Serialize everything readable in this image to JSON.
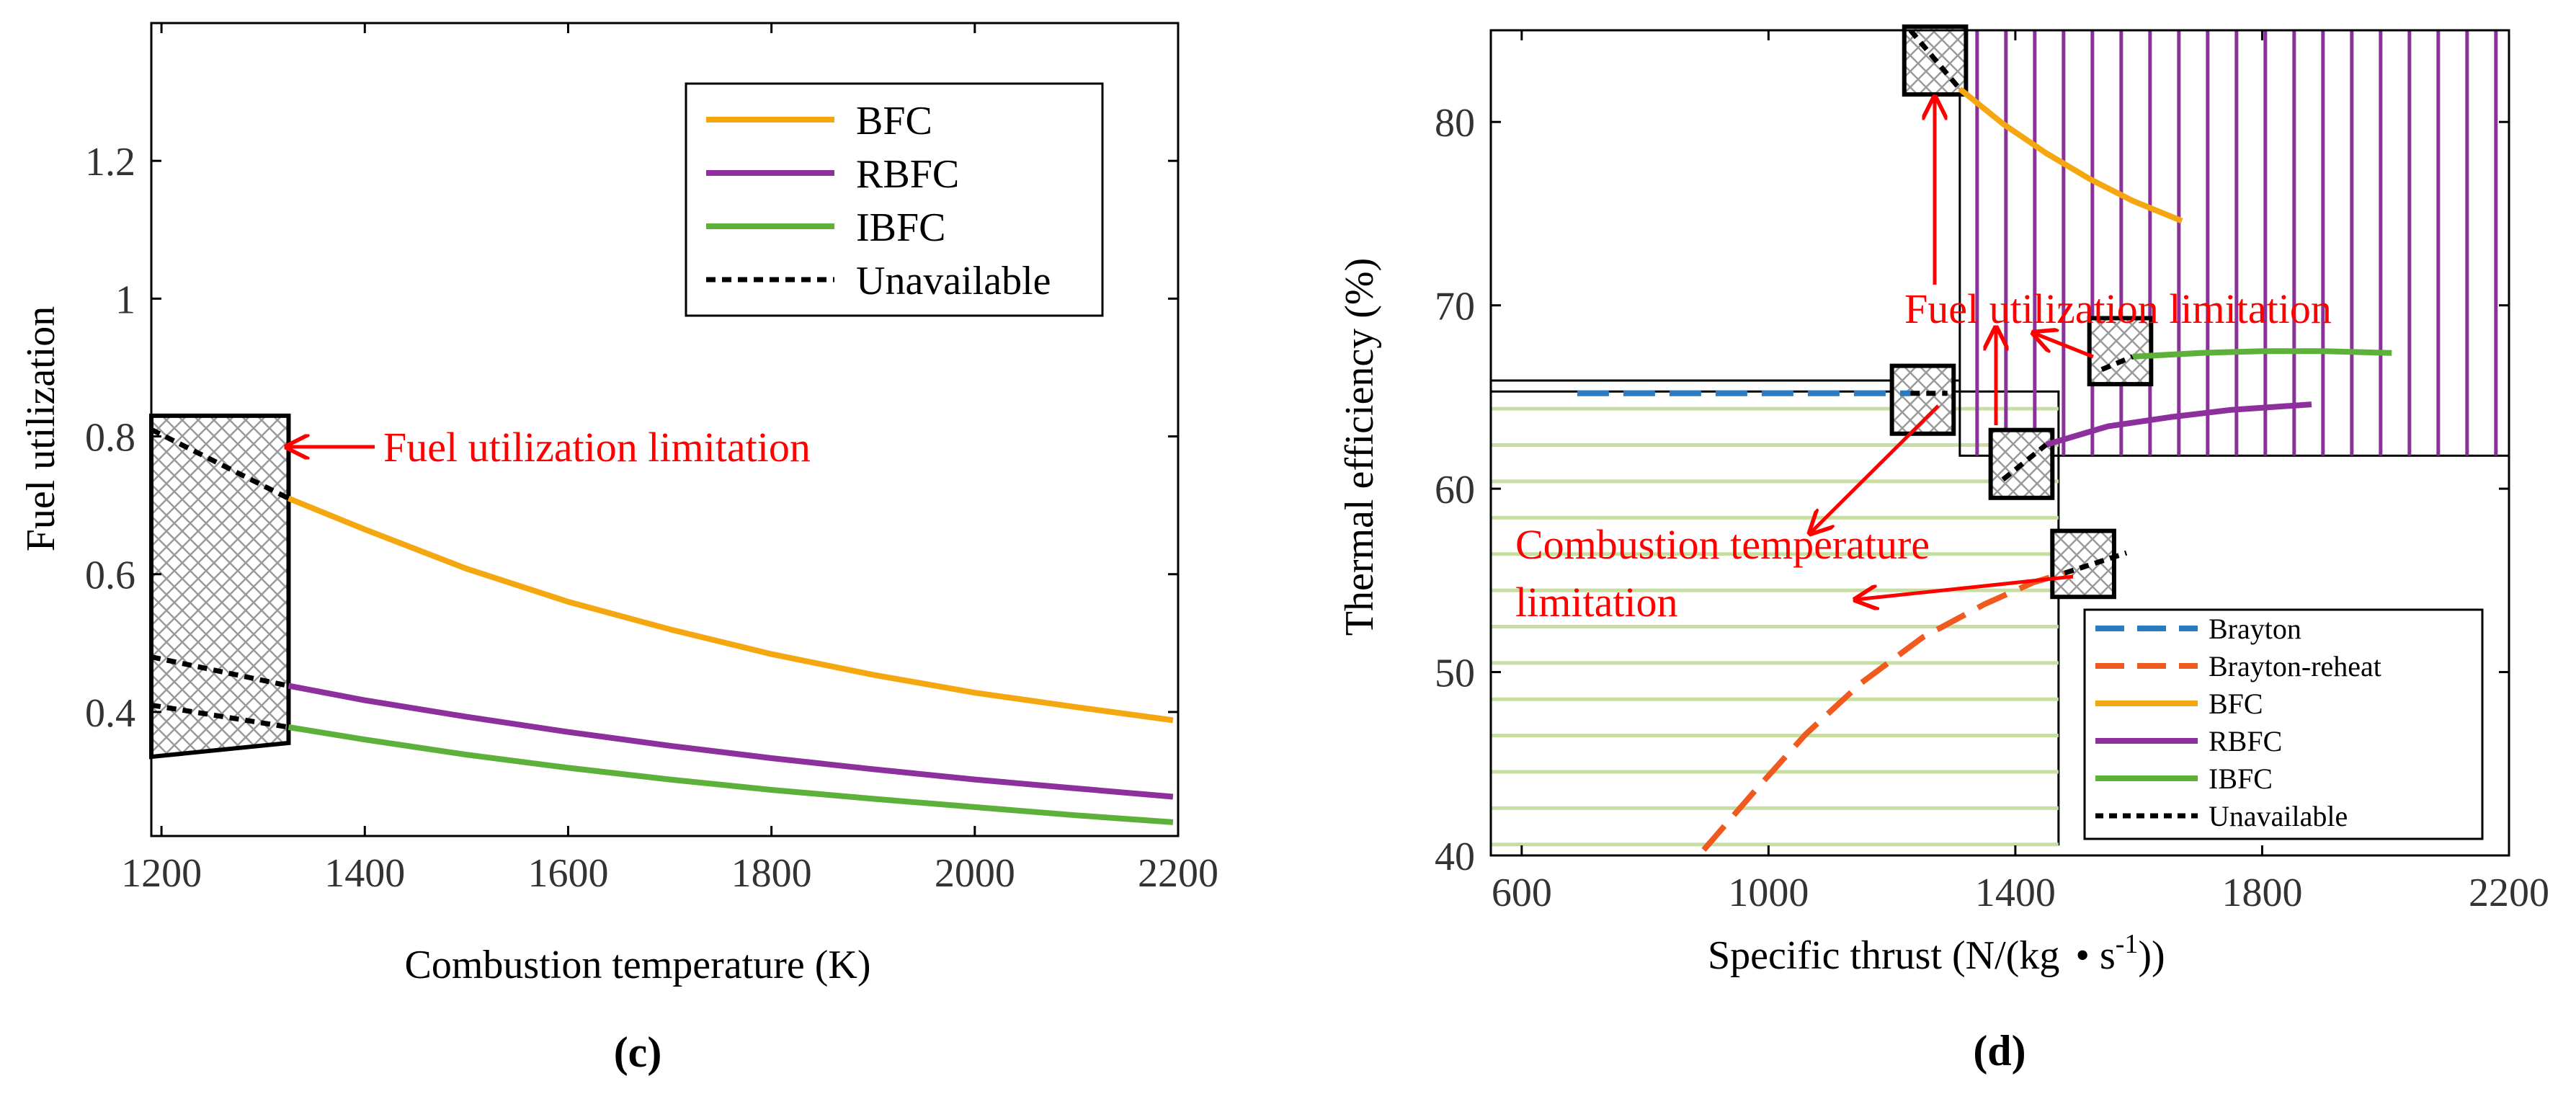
{
  "colors": {
    "bfc": "#f5a70f",
    "rbfc": "#8e2f9e",
    "ibfc": "#5db13a",
    "brayton": "#2c7bc0",
    "brayton_reheat": "#f05a1f",
    "unavailable": "#000000",
    "annotation": "#ff0000",
    "hatch_green": "#c6dfa0",
    "hatch_purple": "#8e2f9e"
  },
  "chart_data": [
    {
      "id": "c",
      "type": "line",
      "panel_label": "(c)",
      "title": "",
      "xlabel": "Combustion temperature (K)",
      "ylabel": "Fuel utilization",
      "xlim": [
        1190,
        2200
      ],
      "ylim": [
        0.22,
        1.4
      ],
      "xticks": [
        1200,
        1400,
        1600,
        1800,
        2000,
        2200
      ],
      "yticks": [
        0.4,
        0.6,
        0.8,
        1,
        1.2
      ],
      "ytick_labels": [
        "0.4",
        "0.6",
        "0.8",
        "1",
        "1.2"
      ],
      "legend": [
        "BFC",
        "RBFC",
        "IBFC",
        "Unavailable"
      ],
      "legend_placement": "top-right",
      "series": [
        {
          "name": "BFC",
          "color": "#f5a70f",
          "x": [
            1325,
            1400,
            1500,
            1600,
            1700,
            1800,
            1900,
            2000,
            2100,
            2195
          ],
          "y": [
            0.71,
            0.665,
            0.608,
            0.56,
            0.52,
            0.484,
            0.454,
            0.428,
            0.407,
            0.388
          ]
        },
        {
          "name": "RBFC",
          "color": "#8e2f9e",
          "x": [
            1325,
            1400,
            1500,
            1600,
            1700,
            1800,
            1900,
            2000,
            2100,
            2195
          ],
          "y": [
            0.438,
            0.417,
            0.393,
            0.371,
            0.351,
            0.333,
            0.317,
            0.302,
            0.289,
            0.277
          ]
        },
        {
          "name": "IBFC",
          "color": "#5db13a",
          "x": [
            1325,
            1400,
            1500,
            1600,
            1700,
            1800,
            1900,
            2000,
            2100,
            2195
          ],
          "y": [
            0.378,
            0.36,
            0.338,
            0.319,
            0.302,
            0.287,
            0.274,
            0.262,
            0.25,
            0.24
          ]
        },
        {
          "name": "Unavailable",
          "color": "#000000",
          "dashed": true,
          "segments": [
            {
              "x": [
                1190,
                1325
              ],
              "y": [
                0.81,
                0.71
              ]
            },
            {
              "x": [
                1190,
                1325
              ],
              "y": [
                0.48,
                0.438
              ]
            },
            {
              "x": [
                1190,
                1325
              ],
              "y": [
                0.41,
                0.378
              ]
            }
          ]
        }
      ],
      "limitation_box": {
        "x": [
          1190,
          1325,
          1325,
          1190
        ],
        "y": [
          0.83,
          0.83,
          0.355,
          0.335
        ]
      },
      "annotations": [
        {
          "text": "Fuel utilization limitation",
          "target": [
            1330,
            0.775
          ],
          "anchor": [
            1420,
            0.775
          ]
        }
      ]
    },
    {
      "id": "d",
      "type": "line",
      "panel_label": "(d)",
      "title": "",
      "xlabel_main": "Specific thrust (N/(kg",
      "xlabel_dot": "•",
      "xlabel_unit": " s",
      "xlabel_sup": "-1",
      "xlabel_end": "))",
      "ylabel": "Thermal efficiency (%)",
      "xlim": [
        550,
        2200
      ],
      "ylim": [
        40,
        85
      ],
      "xticks": [
        600,
        1000,
        1400,
        1800,
        2200
      ],
      "yticks": [
        40,
        50,
        60,
        70,
        80
      ],
      "legend": [
        "Brayton",
        "Brayton-reheat",
        "BFC",
        "RBFC",
        "IBFC",
        "Unavailable"
      ],
      "legend_placement": "bottom-right",
      "series": [
        {
          "name": "Brayton",
          "color": "#2c7bc0",
          "dashed": true,
          "x": [
            690,
            1230
          ],
          "y": [
            65.2,
            65.2
          ]
        },
        {
          "name": "Brayton-reheat",
          "color": "#f05a1f",
          "dashed": true,
          "x": [
            895,
            980,
            1060,
            1150,
            1250,
            1350,
            1430,
            1480
          ],
          "y": [
            40.3,
            43.6,
            46.6,
            49.4,
            51.9,
            53.7,
            54.9,
            55.4
          ]
        },
        {
          "name": "BFC",
          "color": "#f5a70f",
          "x": [
            1310,
            1380,
            1450,
            1520,
            1590,
            1670
          ],
          "y": [
            81.8,
            79.9,
            78.3,
            76.9,
            75.7,
            74.6
          ]
        },
        {
          "name": "RBFC",
          "color": "#8e2f9e",
          "x": [
            1450,
            1550,
            1650,
            1750,
            1880
          ],
          "y": [
            62.4,
            63.4,
            63.9,
            64.3,
            64.6
          ]
        },
        {
          "name": "IBFC",
          "color": "#5db13a",
          "x": [
            1590,
            1700,
            1800,
            1900,
            2010
          ],
          "y": [
            67.2,
            67.4,
            67.5,
            67.5,
            67.4
          ]
        },
        {
          "name": "Unavailable",
          "color": "#000000",
          "dashed": true,
          "segments": [
            {
              "x": [
                1230,
                1310
              ],
              "y": [
                85.0,
                81.8
              ]
            },
            {
              "x": [
                1230,
                1290
              ],
              "y": [
                65.2,
                65.2
              ]
            },
            {
              "x": [
                1380,
                1450
              ],
              "y": [
                60.5,
                62.4
              ]
            },
            {
              "x": [
                1540,
                1590
              ],
              "y": [
                66.5,
                67.2
              ]
            },
            {
              "x": [
                1480,
                1580
              ],
              "y": [
                55.4,
                56.5
              ]
            }
          ]
        }
      ],
      "limitation_boxes": [
        {
          "x": [
            1220,
            1320
          ],
          "y": [
            81.5,
            85.2
          ]
        },
        {
          "x": [
            1200,
            1300
          ],
          "y": [
            63.0,
            66.7
          ]
        },
        {
          "x": [
            1360,
            1460
          ],
          "y": [
            59.5,
            63.2
          ]
        },
        {
          "x": [
            1520,
            1620
          ],
          "y": [
            65.7,
            69.3
          ]
        },
        {
          "x": [
            1460,
            1560
          ],
          "y": [
            54.1,
            57.7
          ]
        }
      ],
      "regions": [
        {
          "name": "green-hatched",
          "x": [
            550,
            1470
          ],
          "y": [
            40.6,
            65.3
          ],
          "color": "#c6dfa0"
        },
        {
          "name": "purple-hatched",
          "x": [
            1310,
            2200
          ],
          "y": [
            61.8,
            85
          ],
          "color": "#8e2f9e"
        }
      ],
      "annotations": [
        {
          "text": "Fuel utilization limitation",
          "lines": [
            "Fuel utilization limitation"
          ]
        },
        {
          "text": "Combustion temperature limitation",
          "lines": [
            "Combustion temperature",
            "limitation"
          ]
        }
      ]
    }
  ]
}
